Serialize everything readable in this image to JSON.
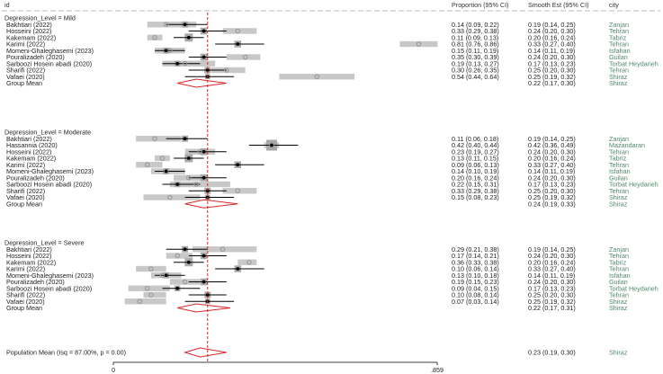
{
  "chart_data": {
    "type": "forest",
    "headers": {
      "id": "id",
      "proportion": "Proportion (95% CI)",
      "smooth": "Smooth Est (95% CI)",
      "city": "city"
    },
    "x_axis": {
      "ticks": [
        "0",
        ".859"
      ],
      "range": [
        0,
        0.859
      ]
    },
    "reference_line": 0.25,
    "groups": [
      {
        "label": "Depression_Level = Mild",
        "studies": [
          {
            "id": "Bakhtiari     (2022)",
            "p": 0.14,
            "lo": 0.09,
            "hi": 0.22,
            "ci": "0.14 (0.09, 0.22)",
            "s": 0.19,
            "slo": 0.14,
            "shi": 0.25,
            "sci": "0.19 (0.14, 0.25)",
            "w": 0.44,
            "city": "Zanjan"
          },
          {
            "id": "Hosseini (2022)",
            "p": 0.33,
            "lo": 0.29,
            "hi": 0.38,
            "ci": "0.33 (0.29, 0.38)",
            "s": 0.24,
            "slo": 0.2,
            "shi": 0.3,
            "sci": "0.24 (0.20, 0.30)",
            "w": 0.5,
            "city": "Tehran"
          },
          {
            "id": "Kakemam (2022)",
            "p": 0.11,
            "lo": 0.09,
            "hi": 0.13,
            "ci": "0.11 (0.09, 0.13)",
            "s": 0.2,
            "slo": 0.16,
            "shi": 0.24,
            "sci": "0.20 (0.16, 0.24)",
            "w": 0.66,
            "city": "Tabriz"
          },
          {
            "id": "Karimi  (2022)",
            "p": 0.81,
            "lo": 0.76,
            "hi": 0.86,
            "ci": "0.81 (0.76, 0.86)",
            "s": 0.33,
            "slo": 0.27,
            "shi": 0.4,
            "sci": "0.33 (0.27, 0.40)",
            "w": 0.5,
            "city": "Tehran"
          },
          {
            "id": "Momeni-Ghaleghasemi (2023)",
            "p": 0.15,
            "lo": 0.11,
            "hi": 0.19,
            "ci": "0.15 (0.11, 0.19)",
            "s": 0.14,
            "slo": 0.11,
            "shi": 0.19,
            "sci": "0.14 (0.11, 0.19)",
            "w": 0.42,
            "city": "Isfahan"
          },
          {
            "id": "Pouralizadeh  (2020)",
            "p": 0.35,
            "lo": 0.3,
            "hi": 0.39,
            "ci": "0.35 (0.30, 0.39)",
            "s": 0.24,
            "slo": 0.2,
            "shi": 0.3,
            "sci": "0.24 (0.20, 0.30)",
            "w": 0.52,
            "city": "Guilan"
          },
          {
            "id": "Sarboozi Hosein abadi  (2020)",
            "p": 0.19,
            "lo": 0.13,
            "hi": 0.27,
            "ci": "0.19 (0.13, 0.27)",
            "s": 0.17,
            "slo": 0.13,
            "shi": 0.23,
            "sci": "0.17 (0.13, 0.23)",
            "w": 0.38,
            "city": "Torbat Heydarieh"
          },
          {
            "id": "Sharifi (2022)",
            "p": 0.3,
            "lo": 0.26,
            "hi": 0.35,
            "ci": "0.30 (0.26, 0.35)",
            "s": 0.25,
            "slo": 0.2,
            "shi": 0.3,
            "sci": "0.25 (0.20, 0.30)",
            "w": 0.44,
            "city": "Tehran"
          },
          {
            "id": "Vafaei (2020)",
            "p": 0.54,
            "lo": 0.44,
            "hi": 0.64,
            "ci": "0.54 (0.44, 0.64)",
            "s": 0.25,
            "slo": 0.19,
            "shi": 0.32,
            "sci": "0.25 (0.19, 0.32)",
            "w": 0.3,
            "city": "Shiraz"
          }
        ],
        "mean": {
          "label": "Group Mean",
          "ci": "0.22 (0.17, 0.30)",
          "p": 0.22,
          "lo": 0.17,
          "hi": 0.3,
          "city": "Shiraz"
        }
      },
      {
        "label": "Depression_Level = Moderate",
        "studies": [
          {
            "id": "Bakhtiari     (2022)",
            "p": 0.11,
            "lo": 0.06,
            "hi": 0.18,
            "ci": "0.11 (0.06, 0.18)",
            "s": 0.19,
            "slo": 0.14,
            "shi": 0.25,
            "sci": "0.19 (0.14, 0.25)",
            "w": 0.44,
            "city": "Zanjan"
          },
          {
            "id": "Hassannia  (2020)",
            "p": 0.42,
            "lo": 0.4,
            "hi": 0.44,
            "ci": "0.42 (0.40, 0.44)",
            "s": 0.42,
            "slo": 0.36,
            "shi": 0.49,
            "sci": "0.42 (0.36, 0.49)",
            "w": 1.0,
            "city": "Mazandaran"
          },
          {
            "id": "Hosseini  (2022)",
            "p": 0.23,
            "lo": 0.19,
            "hi": 0.27,
            "ci": "0.23 (0.19, 0.27)",
            "s": 0.24,
            "slo": 0.2,
            "shi": 0.3,
            "sci": "0.24 (0.20, 0.30)",
            "w": 0.5,
            "city": "Tehran"
          },
          {
            "id": "Kakemam (2022)",
            "p": 0.13,
            "lo": 0.11,
            "hi": 0.15,
            "ci": "0.13 (0.11, 0.15)",
            "s": 0.2,
            "slo": 0.16,
            "shi": 0.24,
            "sci": "0.20 (0.16, 0.24)",
            "w": 0.66,
            "city": "Tabriz"
          },
          {
            "id": "Karimi  (2022)",
            "p": 0.09,
            "lo": 0.06,
            "hi": 0.13,
            "ci": "0.09 (0.06, 0.13)",
            "s": 0.33,
            "slo": 0.27,
            "shi": 0.4,
            "sci": "0.33 (0.27, 0.40)",
            "w": 0.5,
            "city": "Tehran"
          },
          {
            "id": "Momeni-Ghaleghasemi (2023)",
            "p": 0.14,
            "lo": 0.1,
            "hi": 0.19,
            "ci": "0.14 (0.10, 0.19)",
            "s": 0.14,
            "slo": 0.11,
            "shi": 0.19,
            "sci": "0.14 (0.11, 0.19)",
            "w": 0.42,
            "city": "Isfahan"
          },
          {
            "id": "Pouralizadeh  (2020)",
            "p": 0.2,
            "lo": 0.16,
            "hi": 0.24,
            "ci": "0.20 (0.16, 0.24)",
            "s": 0.24,
            "slo": 0.2,
            "shi": 0.3,
            "sci": "0.24 (0.20, 0.30)",
            "w": 0.52,
            "city": "Guilan"
          },
          {
            "id": "Sarboozi Hosein abadi  (2020)",
            "p": 0.22,
            "lo": 0.15,
            "hi": 0.31,
            "ci": "0.22 (0.15, 0.31)",
            "s": 0.17,
            "slo": 0.13,
            "shi": 0.23,
            "sci": "0.17 (0.13, 0.23)",
            "w": 0.38,
            "city": "Torbat Heydarieh"
          },
          {
            "id": "Sharifi (2022)",
            "p": 0.33,
            "lo": 0.29,
            "hi": 0.38,
            "ci": "0.33 (0.29, 0.38)",
            "s": 0.25,
            "slo": 0.2,
            "shi": 0.3,
            "sci": "0.25 (0.20, 0.30)",
            "w": 0.44,
            "city": "Tehran"
          },
          {
            "id": "Vafaei (2020)",
            "p": 0.15,
            "lo": 0.08,
            "hi": 0.23,
            "ci": "0.15 (0.08, 0.23)",
            "s": 0.25,
            "slo": 0.19,
            "shi": 0.32,
            "sci": "0.25 (0.19, 0.32)",
            "w": 0.3,
            "city": "Shiraz"
          }
        ],
        "mean": {
          "label": "Group Mean",
          "ci": "0.24 (0.19, 0.33)",
          "p": 0.24,
          "lo": 0.19,
          "hi": 0.33,
          "city": "Shiraz"
        }
      },
      {
        "label": "Depression_Level = Severe",
        "studies": [
          {
            "id": "Bakhtiari     (2022)",
            "p": 0.29,
            "lo": 0.21,
            "hi": 0.38,
            "ci": "0.29 (0.21, 0.38)",
            "s": 0.19,
            "slo": 0.14,
            "shi": 0.25,
            "sci": "0.19 (0.14, 0.25)",
            "w": 0.44,
            "city": "Zanjan"
          },
          {
            "id": "Hosseini  (2022)",
            "p": 0.17,
            "lo": 0.14,
            "hi": 0.21,
            "ci": "0.17 (0.14, 0.21)",
            "s": 0.24,
            "slo": 0.2,
            "shi": 0.3,
            "sci": "0.24 (0.20, 0.30)",
            "w": 0.5,
            "city": "Tehran"
          },
          {
            "id": "Kakemam (2022)",
            "p": 0.36,
            "lo": 0.33,
            "hi": 0.38,
            "ci": "0.36 (0.33, 0.38)",
            "s": 0.2,
            "slo": 0.16,
            "shi": 0.24,
            "sci": "0.20 (0.16, 0.24)",
            "w": 0.66,
            "city": "Tabriz"
          },
          {
            "id": "Karimi  (2022)",
            "p": 0.1,
            "lo": 0.06,
            "hi": 0.14,
            "ci": "0.10 (0.06, 0.14)",
            "s": 0.33,
            "slo": 0.27,
            "shi": 0.4,
            "sci": "0.33 (0.27, 0.40)",
            "w": 0.5,
            "city": "Tehran"
          },
          {
            "id": "Momeni-Ghaleghasemi (2023)",
            "p": 0.13,
            "lo": 0.1,
            "hi": 0.18,
            "ci": "0.13 (0.10, 0.18)",
            "s": 0.14,
            "slo": 0.11,
            "shi": 0.19,
            "sci": "0.14 (0.11, 0.19)",
            "w": 0.42,
            "city": "Isfahan"
          },
          {
            "id": "Pouralizadeh  (2020)",
            "p": 0.19,
            "lo": 0.15,
            "hi": 0.23,
            "ci": "0.19 (0.15, 0.23)",
            "s": 0.24,
            "slo": 0.2,
            "shi": 0.3,
            "sci": "0.24 (0.20, 0.30)",
            "w": 0.52,
            "city": "Guilan"
          },
          {
            "id": "Sarboozi Hosein abadi  (2020)",
            "p": 0.09,
            "lo": 0.04,
            "hi": 0.15,
            "ci": "0.09 (0.04, 0.15)",
            "s": 0.17,
            "slo": 0.13,
            "shi": 0.23,
            "sci": "0.17 (0.13, 0.23)",
            "w": 0.38,
            "city": "Torbat Heydarieh"
          },
          {
            "id": "Sharifi (2022)",
            "p": 0.1,
            "lo": 0.08,
            "hi": 0.14,
            "ci": "0.10 (0.08, 0.14)",
            "s": 0.25,
            "slo": 0.2,
            "shi": 0.3,
            "sci": "0.25 (0.20, 0.30)",
            "w": 0.44,
            "city": "Tehran"
          },
          {
            "id": "Vafaei (2020)",
            "p": 0.07,
            "lo": 0.03,
            "hi": 0.14,
            "ci": "0.07 (0.03, 0.14)",
            "s": 0.25,
            "slo": 0.19,
            "shi": 0.32,
            "sci": "0.25 (0.19, 0.32)",
            "w": 0.3,
            "city": "Shiraz"
          }
        ],
        "mean": {
          "label": "Group Mean",
          "ci": "0.22 (0.17, 0.31)",
          "p": 0.22,
          "lo": 0.17,
          "hi": 0.31,
          "city": "Shiraz"
        }
      }
    ],
    "population": {
      "label": "Population Mean (Isq = 87.00%, p = 0.00)",
      "ci": "0.23 (0.19, 0.30)",
      "p": 0.23,
      "lo": 0.19,
      "hi": 0.3,
      "city": "Shiraz"
    },
    "colors": {
      "ci_line": "#000000",
      "weight_box": "#c8c8c8",
      "estimate_marker": "#000000",
      "observed_marker": "#9a9a9a",
      "ref_line": "#d62728",
      "diamond": "#d62728",
      "city_text": "#4f8a6a",
      "separator": "#bdbdbd"
    }
  }
}
